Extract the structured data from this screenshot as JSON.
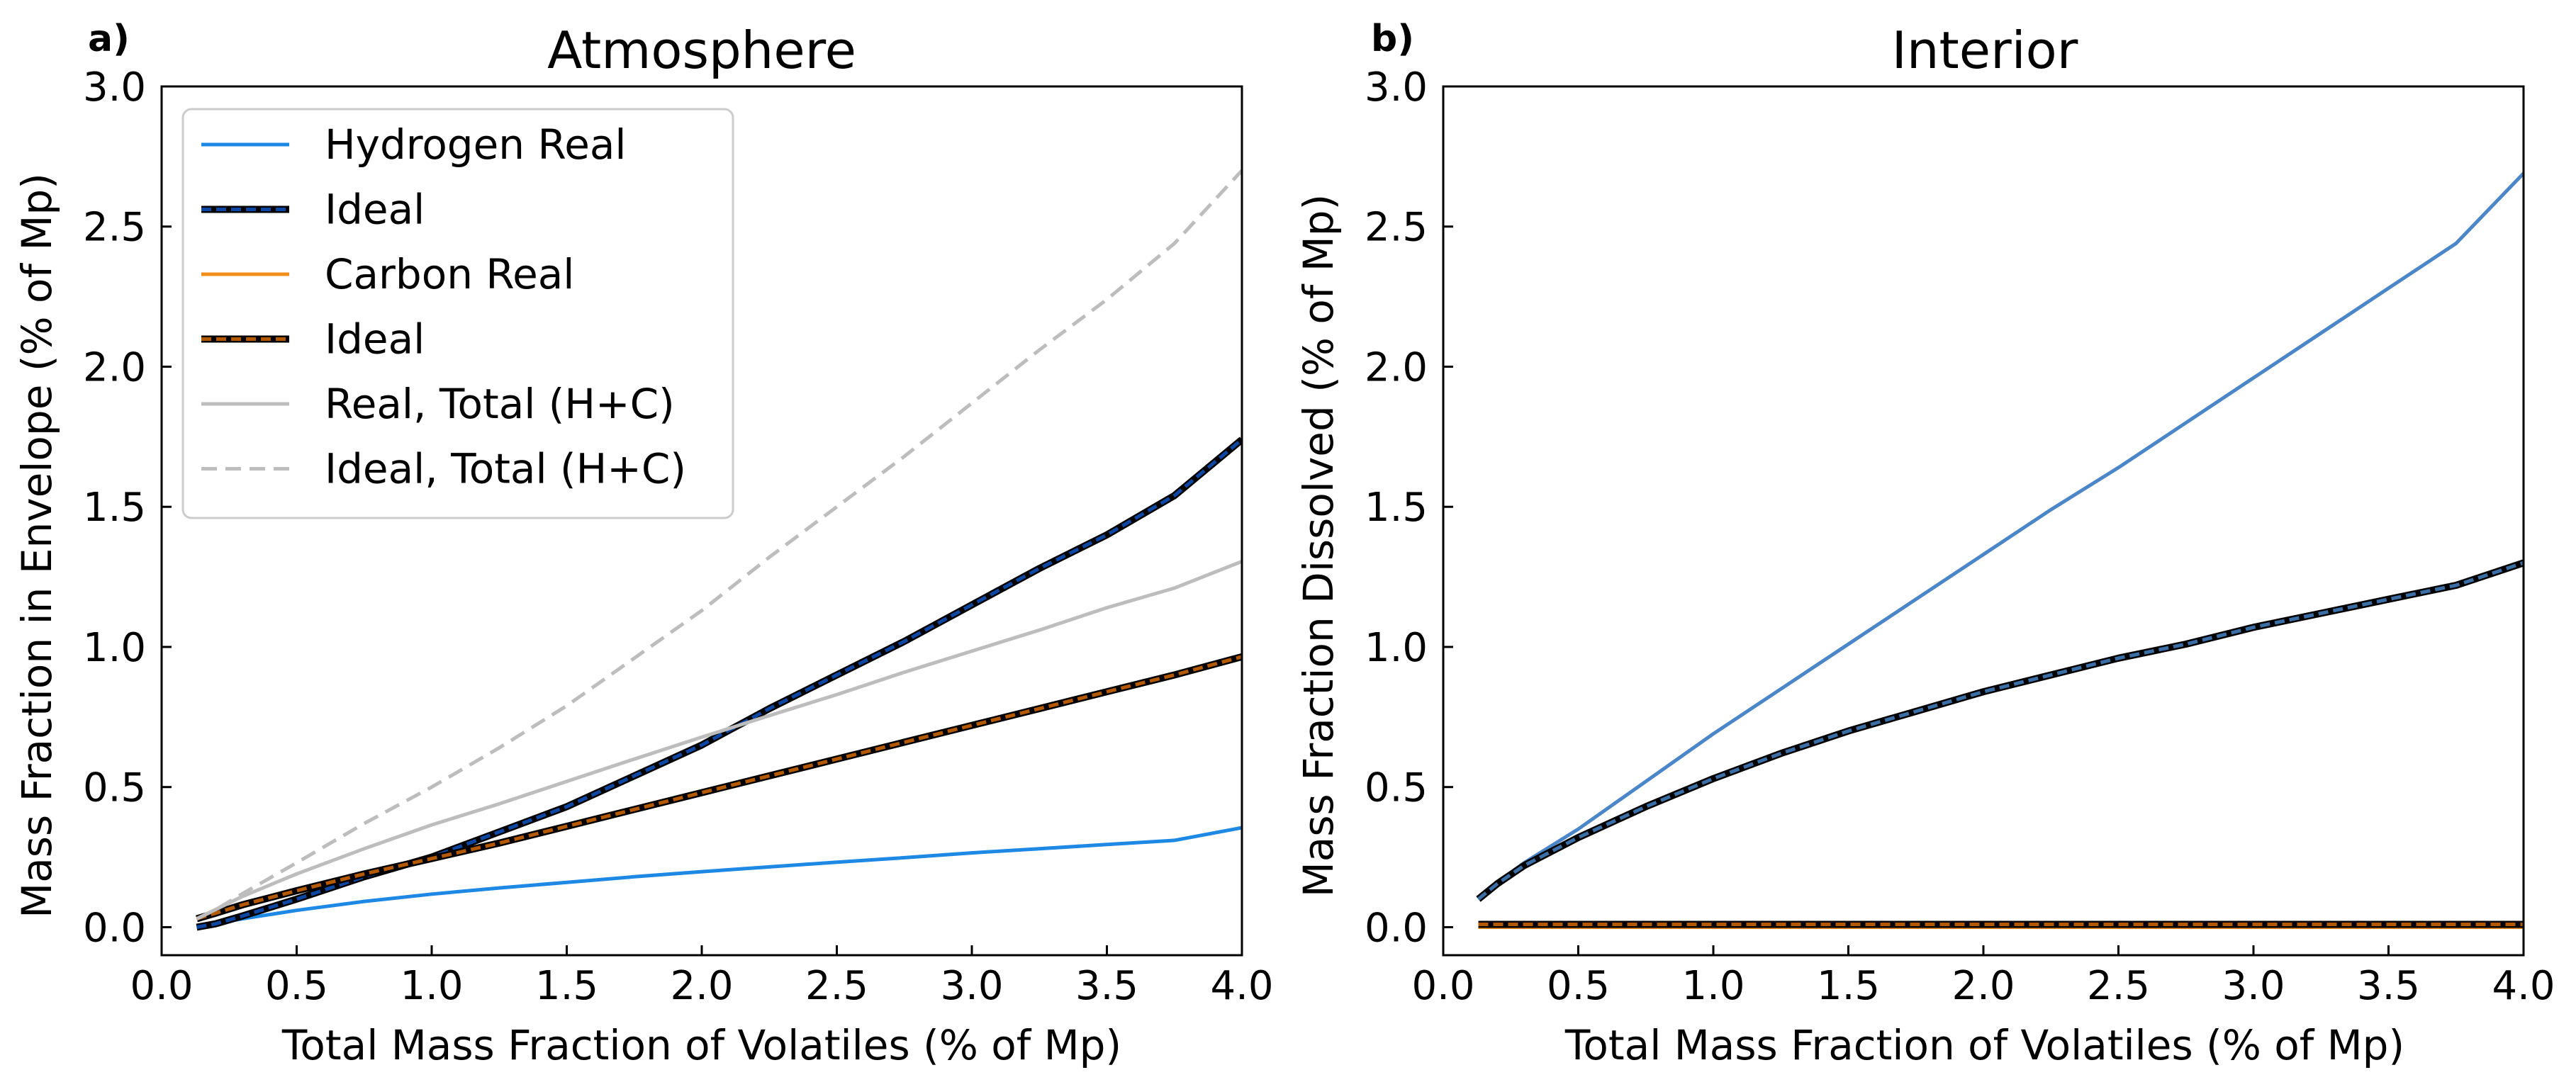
{
  "chart_data": [
    {
      "type": "line",
      "panel_label": "a)",
      "title": "Atmosphere",
      "xlabel": "Total Mass Fraction of Volatiles (% of Mp)",
      "ylabel": "Mass Fraction in Envelope (% of Mp)",
      "xlim": [
        0.0,
        4.0
      ],
      "ylim": [
        -0.1,
        3.0
      ],
      "xticks": [
        "0.0",
        "0.5",
        "1.0",
        "1.5",
        "2.0",
        "2.5",
        "3.0",
        "3.5",
        "4.0"
      ],
      "yticks": [
        "0.0",
        "0.5",
        "1.0",
        "1.5",
        "2.0",
        "2.5",
        "3.0"
      ],
      "grid": false,
      "legend_position": "upper-left",
      "x": [
        0.13,
        0.2,
        0.3,
        0.5,
        0.75,
        1.0,
        1.25,
        1.5,
        1.75,
        2.0,
        2.25,
        2.5,
        2.75,
        3.0,
        3.25,
        3.5,
        3.75,
        4.0
      ],
      "series": [
        {
          "name": "Hydrogen Real",
          "color": "#1e88e5",
          "style": "solid",
          "values": [
            0.0,
            0.013,
            0.03,
            0.06,
            0.092,
            0.118,
            0.14,
            0.16,
            0.18,
            0.198,
            0.215,
            0.232,
            0.248,
            0.265,
            0.28,
            0.295,
            0.31,
            0.355
          ]
        },
        {
          "name": "Ideal",
          "color": "#0d47a1",
          "style": "double-dashed",
          "values": [
            0.0,
            0.012,
            0.04,
            0.1,
            0.18,
            0.25,
            0.34,
            0.43,
            0.54,
            0.65,
            0.78,
            0.9,
            1.02,
            1.15,
            1.28,
            1.4,
            1.54,
            1.74
          ]
        },
        {
          "name": "Carbon Real",
          "color": "#f28e1c",
          "style": "solid",
          "values": [
            0.03,
            0.05,
            0.08,
            0.13,
            0.19,
            0.245,
            0.3,
            0.36,
            0.42,
            0.48,
            0.54,
            0.6,
            0.66,
            0.72,
            0.78,
            0.84,
            0.9,
            0.965
          ]
        },
        {
          "name": "Ideal",
          "color": "#b35900",
          "style": "double-dashed",
          "values": [
            0.03,
            0.05,
            0.08,
            0.13,
            0.19,
            0.245,
            0.3,
            0.36,
            0.42,
            0.48,
            0.54,
            0.6,
            0.66,
            0.72,
            0.78,
            0.84,
            0.9,
            0.965
          ]
        },
        {
          "name": "Real, Total (H+C)",
          "color": "#bdbdbd",
          "style": "solid",
          "values": [
            0.03,
            0.063,
            0.11,
            0.19,
            0.28,
            0.365,
            0.44,
            0.52,
            0.6,
            0.678,
            0.755,
            0.83,
            0.91,
            0.985,
            1.06,
            1.14,
            1.21,
            1.305
          ]
        },
        {
          "name": "Ideal, Total (H+C)",
          "color": "#bdbdbd",
          "style": "dashed",
          "values": [
            0.03,
            0.062,
            0.12,
            0.23,
            0.37,
            0.5,
            0.64,
            0.79,
            0.96,
            1.13,
            1.32,
            1.5,
            1.68,
            1.87,
            2.06,
            2.24,
            2.44,
            2.7
          ]
        }
      ]
    },
    {
      "type": "line",
      "panel_label": "b)",
      "title": "Interior",
      "xlabel": "Total Mass Fraction of Volatiles (% of Mp)",
      "ylabel": "Mass Fraction Dissolved (% of Mp)",
      "xlim": [
        0.0,
        4.0
      ],
      "ylim": [
        -0.1,
        3.0
      ],
      "xticks": [
        "0.0",
        "0.5",
        "1.0",
        "1.5",
        "2.0",
        "2.5",
        "3.0",
        "3.5",
        "4.0"
      ],
      "yticks": [
        "0.0",
        "0.5",
        "1.0",
        "1.5",
        "2.0",
        "2.5",
        "3.0"
      ],
      "grid": false,
      "x": [
        0.13,
        0.2,
        0.3,
        0.5,
        0.75,
        1.0,
        1.25,
        1.5,
        1.75,
        2.0,
        2.25,
        2.5,
        2.75,
        3.0,
        3.25,
        3.5,
        3.75,
        4.0
      ],
      "series": [
        {
          "color": "#4a86c8",
          "style": "solid",
          "values": [
            0.1,
            0.16,
            0.23,
            0.35,
            0.52,
            0.69,
            0.85,
            1.01,
            1.17,
            1.33,
            1.49,
            1.64,
            1.8,
            1.96,
            2.12,
            2.28,
            2.44,
            2.69
          ]
        },
        {
          "color": "#3a6ea5",
          "style": "double-dashed",
          "values": [
            0.1,
            0.155,
            0.22,
            0.32,
            0.43,
            0.53,
            0.62,
            0.7,
            0.77,
            0.84,
            0.9,
            0.96,
            1.01,
            1.07,
            1.12,
            1.17,
            1.22,
            1.3
          ]
        },
        {
          "color": "#f28e1c",
          "style": "solid",
          "values": [
            0.0,
            0.0,
            0.0,
            0.0,
            0.0,
            0.0,
            0.0,
            0.0,
            0.0,
            0.0,
            0.0,
            0.0,
            0.0,
            0.0,
            0.0,
            0.0,
            0.0,
            0.0
          ]
        },
        {
          "color": "#b35900",
          "style": "double-dashed",
          "values": [
            0.01,
            0.01,
            0.01,
            0.01,
            0.01,
            0.01,
            0.01,
            0.01,
            0.01,
            0.01,
            0.01,
            0.01,
            0.01,
            0.01,
            0.01,
            0.01,
            0.01,
            0.01
          ]
        }
      ]
    }
  ]
}
